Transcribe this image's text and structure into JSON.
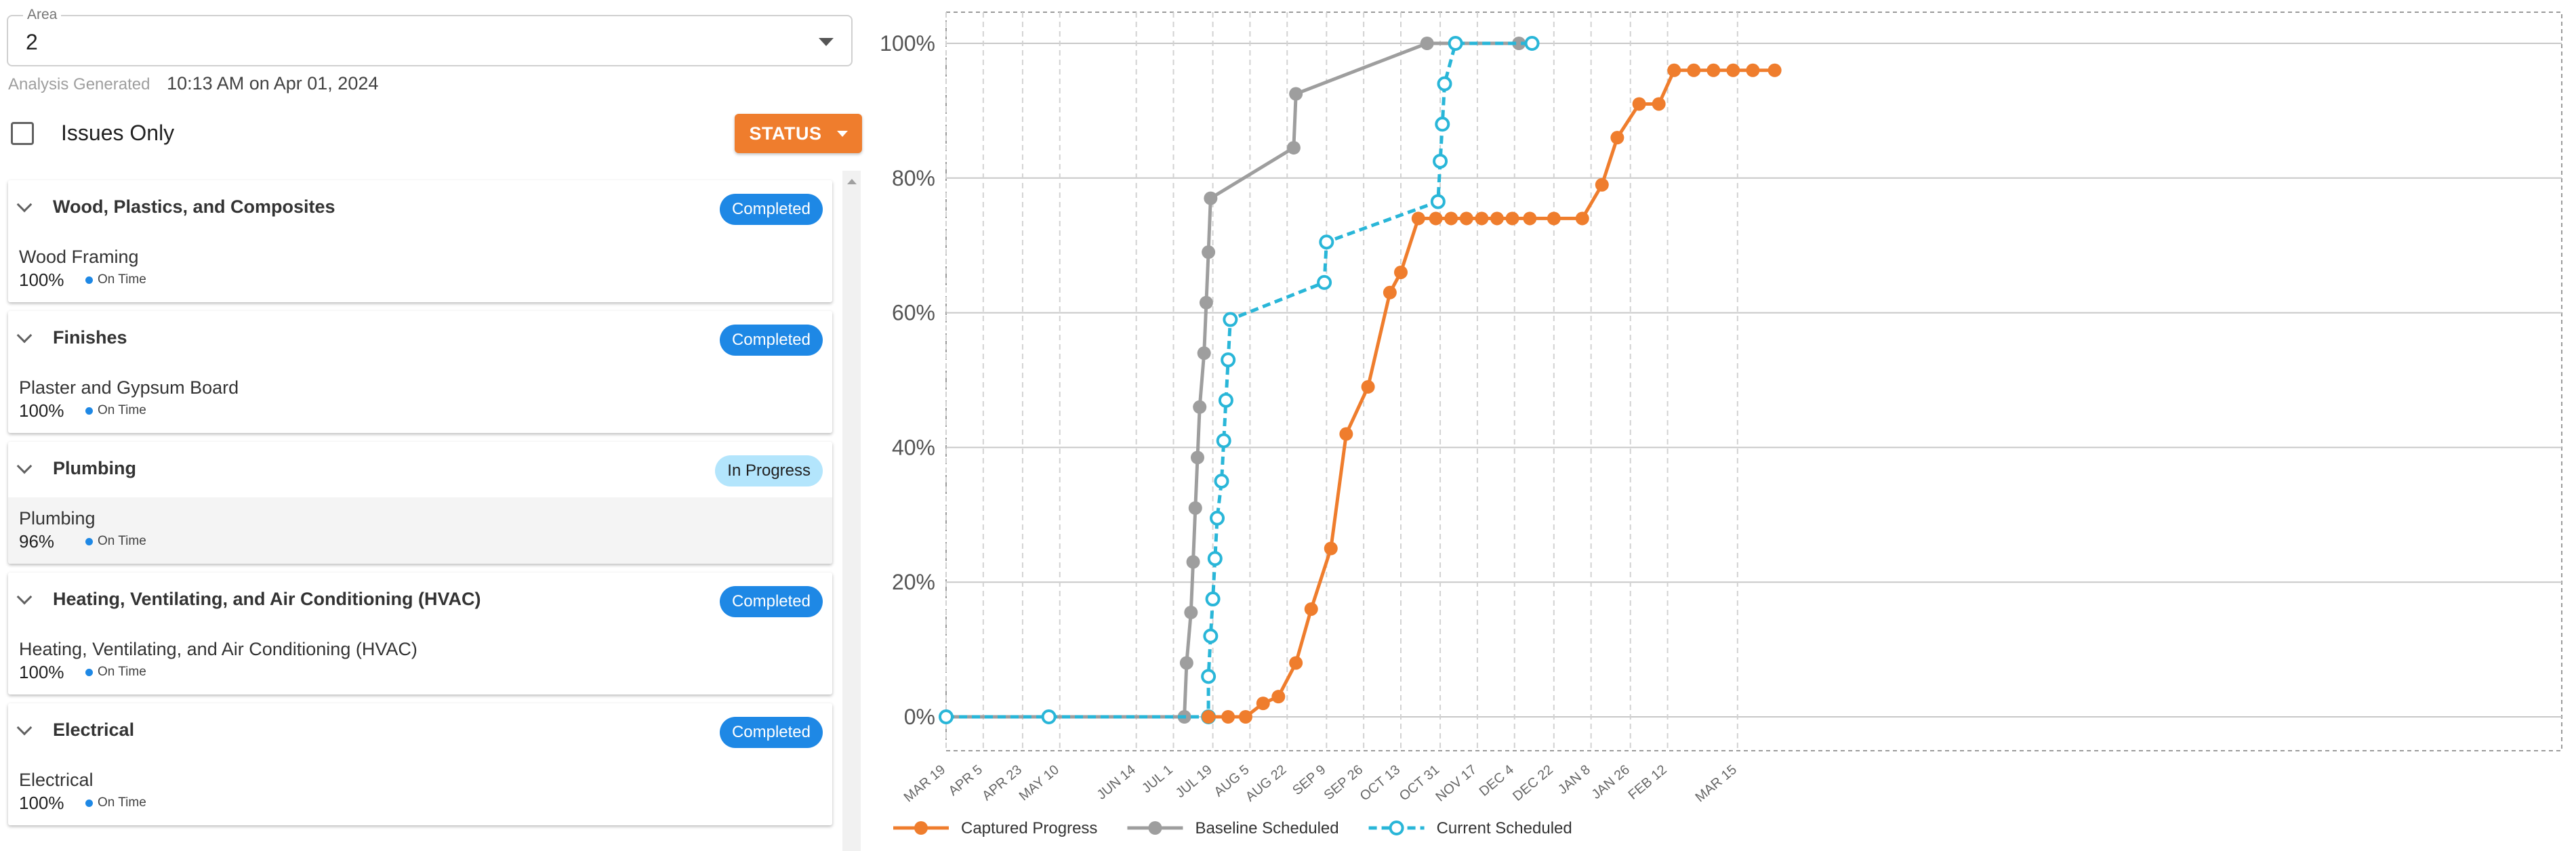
{
  "area": {
    "legend": "Area",
    "value": "2"
  },
  "generated": {
    "label": "Analysis Generated",
    "value": "10:13 AM on Apr 01, 2024"
  },
  "issues_only": {
    "label": "Issues Only",
    "checked": false
  },
  "status_button": {
    "label": "STATUS"
  },
  "cards": [
    {
      "title": "Wood, Plastics, and Composites",
      "badge": "Completed",
      "item": "Wood Framing",
      "percent": "100%",
      "state": "On Time"
    },
    {
      "title": "Finishes",
      "badge": "Completed",
      "item": "Plaster and Gypsum Board",
      "percent": "100%",
      "state": "On Time"
    },
    {
      "title": "Plumbing",
      "badge": "In Progress",
      "item": "Plumbing",
      "percent": "96%",
      "state": "On Time"
    },
    {
      "title": "Heating, Ventilating, and Air Conditioning (HVAC)",
      "badge": "Completed",
      "item": "Heating, Ventilating, and Air Conditioning (HVAC)",
      "percent": "100%",
      "state": "On Time"
    },
    {
      "title": "Electrical",
      "badge": "Completed",
      "item": "Electrical",
      "percent": "100%",
      "state": "On Time"
    }
  ],
  "colors": {
    "accent": "#ef7d2d",
    "badge_completed": "#1e88e5",
    "badge_in_progress": "#b3e5fc",
    "baseline": "#9e9e9e",
    "current": "#29b6d8"
  },
  "chart_data": {
    "type": "line",
    "x_type": "date",
    "xlim": [
      "2023-03-19",
      "2025-03-27"
    ],
    "ylim": [
      0,
      100
    ],
    "y_ticks": [
      "0%",
      "20%",
      "40%",
      "60%",
      "80%",
      "100%"
    ],
    "x_ticks": [
      {
        "label": "MAR 19",
        "date": "2023-03-19"
      },
      {
        "label": "APR 5",
        "date": "2023-04-05"
      },
      {
        "label": "APR 23",
        "date": "2023-04-23"
      },
      {
        "label": "MAY 10",
        "date": "2023-05-10"
      },
      {
        "label": "JUN 14",
        "date": "2023-06-14"
      },
      {
        "label": "JUL 1",
        "date": "2023-07-01"
      },
      {
        "label": "JUL 19",
        "date": "2023-07-19"
      },
      {
        "label": "AUG 5",
        "date": "2023-08-05"
      },
      {
        "label": "AUG 22",
        "date": "2023-08-22"
      },
      {
        "label": "SEP 9",
        "date": "2023-09-09"
      },
      {
        "label": "SEP 26",
        "date": "2023-09-26"
      },
      {
        "label": "OCT 13",
        "date": "2023-10-13"
      },
      {
        "label": "OCT 31",
        "date": "2023-10-31"
      },
      {
        "label": "NOV 17",
        "date": "2023-11-17"
      },
      {
        "label": "DEC 4",
        "date": "2023-12-04"
      },
      {
        "label": "DEC 22",
        "date": "2023-12-22"
      },
      {
        "label": "JAN 8",
        "date": "2024-01-08"
      },
      {
        "label": "JAN 26",
        "date": "2024-01-26"
      },
      {
        "label": "FEB 12",
        "date": "2024-02-12"
      },
      {
        "label": "MAR 15",
        "date": "2024-03-15"
      }
    ],
    "grid": true,
    "legend_position": "bottom-left",
    "series": [
      {
        "name": "Captured Progress",
        "color": "#ef7d2d",
        "style": "solid",
        "marker": "filled-circle",
        "points": [
          [
            "2023-07-17",
            0
          ],
          [
            "2023-07-26",
            0
          ],
          [
            "2023-08-03",
            0
          ],
          [
            "2023-08-11",
            2
          ],
          [
            "2023-08-18",
            3
          ],
          [
            "2023-08-26",
            8
          ],
          [
            "2023-09-02",
            16
          ],
          [
            "2023-09-11",
            25
          ],
          [
            "2023-09-18",
            42
          ],
          [
            "2023-09-28",
            49
          ],
          [
            "2023-10-08",
            63
          ],
          [
            "2023-10-13",
            66
          ],
          [
            "2023-10-21",
            74
          ],
          [
            "2023-10-29",
            74
          ],
          [
            "2023-11-05",
            74
          ],
          [
            "2023-11-12",
            74
          ],
          [
            "2023-11-19",
            74
          ],
          [
            "2023-11-26",
            74
          ],
          [
            "2023-12-03",
            74
          ],
          [
            "2023-12-11",
            74
          ],
          [
            "2023-12-22",
            74
          ],
          [
            "2024-01-04",
            74
          ],
          [
            "2024-01-13",
            79
          ],
          [
            "2024-01-20",
            86
          ],
          [
            "2024-01-30",
            91
          ],
          [
            "2024-02-08",
            91
          ],
          [
            "2024-02-15",
            96
          ],
          [
            "2024-02-24",
            96
          ],
          [
            "2024-03-04",
            96
          ],
          [
            "2024-03-13",
            96
          ],
          [
            "2024-03-22",
            96
          ],
          [
            "2024-04-01",
            96
          ]
        ]
      },
      {
        "name": "Baseline Scheduled",
        "color": "#9e9e9e",
        "style": "solid",
        "marker": "filled-circle",
        "points": [
          [
            "2023-03-19",
            0
          ],
          [
            "2023-07-06",
            0
          ],
          [
            "2023-07-07",
            8
          ],
          [
            "2023-07-09",
            15.5
          ],
          [
            "2023-07-10",
            23
          ],
          [
            "2023-07-11",
            31
          ],
          [
            "2023-07-12",
            38.5
          ],
          [
            "2023-07-13",
            46
          ],
          [
            "2023-07-15",
            54
          ],
          [
            "2023-07-16",
            61.5
          ],
          [
            "2023-07-17",
            69
          ],
          [
            "2023-07-18",
            77
          ],
          [
            "2023-08-25",
            84.5
          ],
          [
            "2023-08-26",
            92.5
          ],
          [
            "2023-10-25",
            100
          ],
          [
            "2023-12-06",
            100
          ]
        ]
      },
      {
        "name": "Current Scheduled",
        "color": "#29b6d8",
        "style": "dashed",
        "marker": "open-circle",
        "points": [
          [
            "2023-03-19",
            0
          ],
          [
            "2023-05-05",
            0
          ],
          [
            "2023-07-17",
            0
          ],
          [
            "2023-07-17",
            6
          ],
          [
            "2023-07-18",
            12
          ],
          [
            "2023-07-19",
            17.5
          ],
          [
            "2023-07-20",
            23.5
          ],
          [
            "2023-07-21",
            29.5
          ],
          [
            "2023-07-23",
            35
          ],
          [
            "2023-07-24",
            41
          ],
          [
            "2023-07-25",
            47
          ],
          [
            "2023-07-26",
            53
          ],
          [
            "2023-07-27",
            59
          ],
          [
            "2023-09-08",
            64.5
          ],
          [
            "2023-09-09",
            70.5
          ],
          [
            "2023-10-30",
            76.5
          ],
          [
            "2023-10-31",
            82.5
          ],
          [
            "2023-11-01",
            88
          ],
          [
            "2023-11-02",
            94
          ],
          [
            "2023-11-07",
            100
          ],
          [
            "2023-12-12",
            100
          ]
        ]
      }
    ]
  }
}
